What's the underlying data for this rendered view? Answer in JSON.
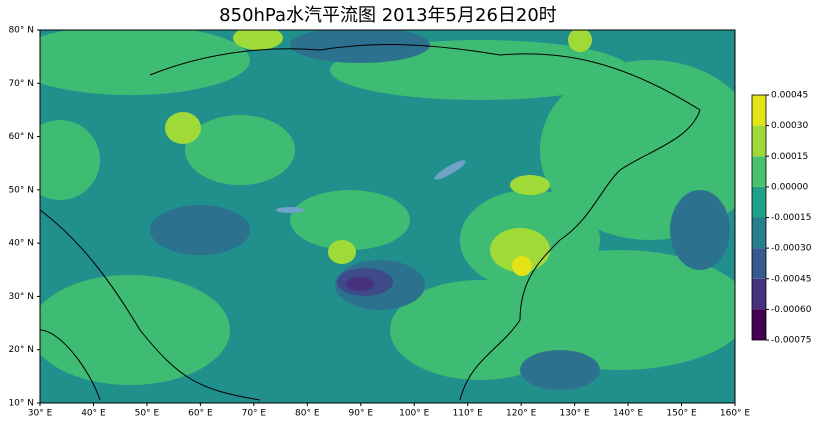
{
  "chart_data": {
    "type": "contour-map",
    "title": "850hPa水汽平流图   2013年5月26日20时",
    "xlim": [
      30,
      160
    ],
    "ylim": [
      10,
      80
    ],
    "xticks": [
      {
        "value": 30,
        "label": "30° E"
      },
      {
        "value": 40,
        "label": "40° E"
      },
      {
        "value": 50,
        "label": "50° E"
      },
      {
        "value": 60,
        "label": "60° E"
      },
      {
        "value": 70,
        "label": "70° E"
      },
      {
        "value": 80,
        "label": "80° E"
      },
      {
        "value": 90,
        "label": "90° E"
      },
      {
        "value": 100,
        "label": "100° E"
      },
      {
        "value": 110,
        "label": "110° E"
      },
      {
        "value": 120,
        "label": "120° E"
      },
      {
        "value": 130,
        "label": "130° E"
      },
      {
        "value": 140,
        "label": "140° E"
      },
      {
        "value": 150,
        "label": "150° E"
      },
      {
        "value": 160,
        "label": "160° E"
      }
    ],
    "yticks": [
      {
        "value": 10,
        "label": "10° N"
      },
      {
        "value": 20,
        "label": "20° N"
      },
      {
        "value": 30,
        "label": "30° N"
      },
      {
        "value": 40,
        "label": "40° N"
      },
      {
        "value": 50,
        "label": "50° N"
      },
      {
        "value": 60,
        "label": "60° N"
      },
      {
        "value": 70,
        "label": "70° N"
      },
      {
        "value": 80,
        "label": "80° N"
      }
    ],
    "colorbar": {
      "levels": [
        -0.00075,
        {
          "value": -0.0006,
          "label": "-0.00060"
        },
        -0.00045,
        {
          "value": -0.0003,
          "label": "-0.00030"
        },
        -0.00015,
        {
          "value": 0,
          "label": "0.00000"
        },
        0.00015,
        {
          "value": 0.0003,
          "label": "0.00030"
        },
        0.00045
      ],
      "colors": [
        "#440154",
        "#46327e",
        "#365c8d",
        "#277f8e",
        "#1fa187",
        "#4ac16d",
        "#a0da39",
        "#e2e418"
      ]
    }
  }
}
